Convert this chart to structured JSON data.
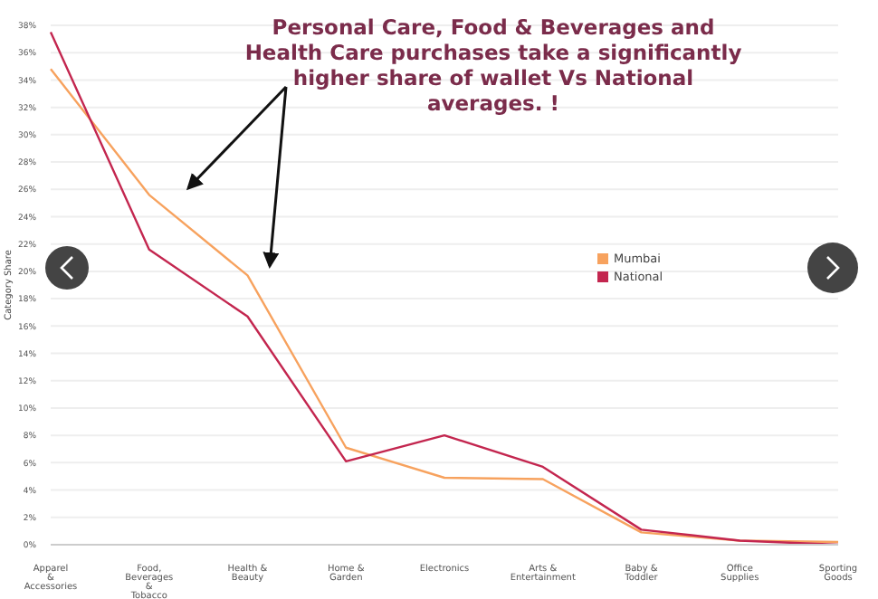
{
  "chart_data": {
    "type": "line",
    "title": "Personal Care, Food & Beverages and Health Care purchases take a significantly higher share of wallet Vs National averages. !",
    "ylabel": "Category Share",
    "categories": [
      "Apparel & Accessories",
      "Food, Beverages & Tobacco",
      "Health & Beauty",
      "Home & Garden",
      "Electronics",
      "Arts & Entertainment",
      "Baby & Toddler",
      "Office Supplies",
      "Sporting Goods"
    ],
    "series": [
      {
        "name": "Mumbai",
        "color": "#f7a25e",
        "values": [
          34.8,
          25.6,
          19.7,
          7.1,
          4.9,
          4.8,
          0.9,
          0.3,
          0.2
        ]
      },
      {
        "name": "National",
        "color": "#c3264f",
        "values": [
          37.5,
          21.6,
          16.7,
          6.1,
          8.0,
          5.7,
          1.1,
          0.3,
          0.0
        ]
      }
    ],
    "ylim": [
      0,
      38
    ],
    "yticks": [
      {
        "value": 0,
        "label": "0%"
      },
      {
        "value": 2,
        "label": "2%"
      },
      {
        "value": 4,
        "label": "4%"
      },
      {
        "value": 6,
        "label": "6%"
      },
      {
        "value": 8,
        "label": "8%"
      },
      {
        "value": 10,
        "label": "10%"
      },
      {
        "value": 12,
        "label": "12%"
      },
      {
        "value": 14,
        "label": "14%"
      },
      {
        "value": 16,
        "label": "16%"
      },
      {
        "value": 18,
        "label": "18%"
      },
      {
        "value": 20,
        "label": "20%"
      },
      {
        "value": 22,
        "label": "22%"
      },
      {
        "value": 24,
        "label": "24%"
      },
      {
        "value": 26,
        "label": "26%"
      },
      {
        "value": 28,
        "label": "28%"
      },
      {
        "value": 30,
        "label": "30%"
      },
      {
        "value": 32,
        "label": "32%"
      },
      {
        "value": 34,
        "label": "34%"
      },
      {
        "value": 36,
        "label": "36%"
      },
      {
        "value": 38,
        "label": "38%"
      }
    ],
    "grid": "y",
    "legend": "right",
    "marker": "none",
    "line_style": "solid"
  }
}
